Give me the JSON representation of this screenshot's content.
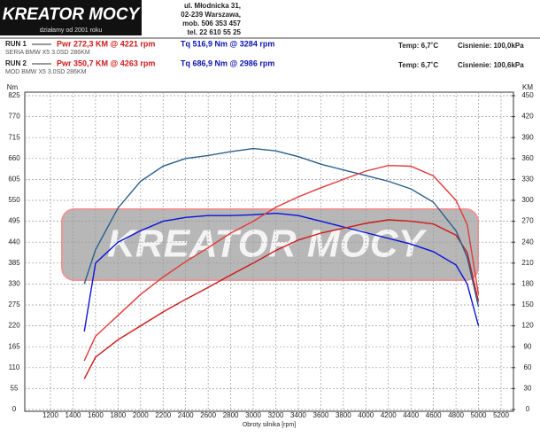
{
  "header": {
    "logo": "KREATOR MOCY",
    "slogan": "działamy od 2001 roku",
    "address": [
      "ul. Młodnicka 31,",
      "02-239  Warszawa,",
      "mob.  506 353 457",
      "tel.  22 610 55 25"
    ]
  },
  "runs": [
    {
      "label": "RUN 1",
      "power": "Pwr  272,3 KM @ 4221 rpm",
      "torque": "Tq  516,9 Nm @ 3284 rpm",
      "temp": "Temp: 6,7˚C",
      "pressure": "Cisnienie: 100,0kPa",
      "car": "SERIA BMW X5 3.0SD 286KM"
    },
    {
      "label": "RUN 2",
      "power": "Pwr  350,7 KM @ 4263 rpm",
      "torque": "Tq  686,9 Nm @ 2986 rpm",
      "temp": "Temp: 6,7˚C",
      "pressure": "Cisnienie: 100,6kPa",
      "car": "MOD BMW X5 3.0SD 286KM"
    }
  ],
  "chart_data": {
    "type": "line",
    "y_label": "Nm",
    "y2_label": "KM",
    "x_label": "Obroty silnika [rpm]",
    "x": [
      1500,
      1600,
      1800,
      2000,
      2200,
      2400,
      2600,
      2800,
      3000,
      3200,
      3400,
      3600,
      3800,
      4000,
      4200,
      4400,
      4600,
      4800,
      4900,
      5000
    ],
    "xlim": [
      1200,
      5200
    ],
    "xticks": [
      1200,
      1400,
      1600,
      1800,
      2000,
      2200,
      2400,
      2600,
      2800,
      3000,
      3200,
      3400,
      3600,
      3800,
      4000,
      4200,
      4400,
      4600,
      4800,
      5000,
      5200
    ],
    "ylim": [
      0,
      825
    ],
    "yticks": [
      0,
      55,
      110,
      165,
      220,
      275,
      330,
      385,
      440,
      495,
      550,
      605,
      660,
      715,
      770,
      825
    ],
    "y2lim": [
      0,
      450
    ],
    "y2ticks": [
      0,
      30,
      60,
      90,
      120,
      150,
      180,
      210,
      240,
      270,
      300,
      330,
      360,
      390,
      420,
      450
    ],
    "grid": true,
    "series": [
      {
        "color": "#0a14d8",
        "values": [
          205,
          385,
          440,
          470,
          495,
          505,
          510,
          510,
          512,
          516,
          510,
          495,
          480,
          465,
          450,
          435,
          415,
          380,
          330,
          220
        ]
      },
      {
        "color": "#d01818",
        "axis": "y2",
        "values": [
          44,
          75,
          100,
          120,
          140,
          158,
          175,
          193,
          210,
          228,
          243,
          253,
          260,
          267,
          272,
          270,
          266,
          250,
          225,
          155
        ]
      },
      {
        "color": "#2a5f8c",
        "values": [
          330,
          420,
          530,
          600,
          640,
          660,
          668,
          678,
          686,
          680,
          665,
          645,
          630,
          615,
          600,
          580,
          545,
          470,
          400,
          270
        ]
      },
      {
        "color": "#e23a3a",
        "axis": "y2",
        "values": [
          70,
          105,
          135,
          165,
          190,
          212,
          232,
          253,
          270,
          290,
          305,
          318,
          330,
          342,
          350,
          349,
          335,
          300,
          265,
          165
        ]
      }
    ]
  }
}
